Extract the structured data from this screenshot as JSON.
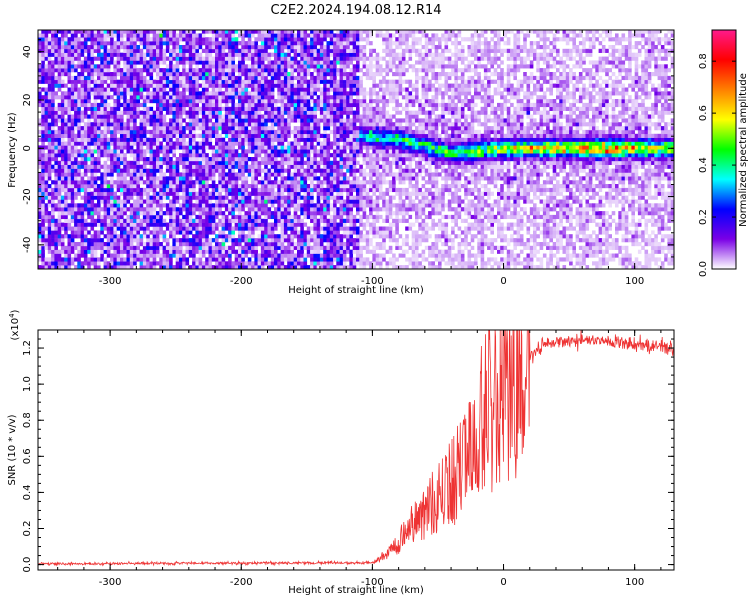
{
  "title": "C2E2.2024.194.08.12.R14",
  "chart_data": [
    {
      "type": "heatmap",
      "xlabel": "Height of straight line (km)",
      "ylabel": "Frequency (Hz)",
      "xlim": [
        -355,
        130
      ],
      "ylim": [
        -50,
        49
      ],
      "xticks": [
        -300,
        -200,
        -100,
        0,
        100
      ],
      "xtick_labels": [
        "-300",
        "-200",
        "-100",
        "0",
        "100"
      ],
      "yticks": [
        -40,
        -20,
        0,
        20,
        40
      ],
      "ytick_labels": [
        "-40",
        "-20",
        "0",
        "20",
        "40"
      ],
      "colorbar": {
        "label": "Normalized spectral amplitude",
        "range": [
          0,
          0.92
        ],
        "ticks": [
          0.0,
          0.2,
          0.4,
          0.6,
          0.8
        ],
        "tick_labels": [
          "0.0",
          "0.2",
          "0.4",
          "0.6",
          "0.8"
        ],
        "colors": [
          "#ffffff",
          "#7a00e6",
          "#0000ff",
          "#00ffff",
          "#00ff00",
          "#ffff00",
          "#ff8000",
          "#ff0000",
          "#ff1a8c"
        ]
      },
      "noise_level": 0.1,
      "signal_onset_km": -110,
      "signal_ridge": [
        {
          "x": -110,
          "freq": 5,
          "amp": 0.35
        },
        {
          "x": -80,
          "freq": 4,
          "amp": 0.45
        },
        {
          "x": -40,
          "freq": -2,
          "amp": 0.5
        },
        {
          "x": 0,
          "freq": 0,
          "amp": 0.6
        },
        {
          "x": 75,
          "freq": 0,
          "amp": 0.75
        },
        {
          "x": 130,
          "freq": 0,
          "amp": 0.6
        }
      ]
    },
    {
      "type": "line",
      "xlabel": "Height of straight line (km)",
      "ylabel": "SNR (10 * v/v)",
      "y_multiplier": "(x10",
      "y_multiplier_exp": "4",
      "y_multiplier_close": ")",
      "xlim": [
        -355,
        130
      ],
      "ylim": [
        -0.03,
        1.3
      ],
      "xticks": [
        -300,
        -200,
        -100,
        0,
        100
      ],
      "xtick_labels": [
        "-300",
        "-200",
        "-100",
        "0",
        "100"
      ],
      "yticks": [
        0.0,
        0.2,
        0.4,
        0.6,
        0.8,
        1.0,
        1.2
      ],
      "ytick_labels": [
        "0.0",
        "0.2",
        "0.4",
        "0.6",
        "0.8",
        "1.0",
        "1.2"
      ],
      "color": "#ee3333",
      "envelope": [
        {
          "x": -355,
          "y": 0.005
        },
        {
          "x": -100,
          "y": 0.01
        },
        {
          "x": -85,
          "y": 0.08
        },
        {
          "x": -60,
          "y": 0.3
        },
        {
          "x": -40,
          "y": 0.45
        },
        {
          "x": -25,
          "y": 0.6
        },
        {
          "x": -15,
          "y": 0.85
        },
        {
          "x": 0,
          "y": 0.95
        },
        {
          "x": 15,
          "y": 1.1
        },
        {
          "x": 30,
          "y": 1.22
        },
        {
          "x": 60,
          "y": 1.25
        },
        {
          "x": 100,
          "y": 1.22
        },
        {
          "x": 130,
          "y": 1.2
        }
      ]
    }
  ]
}
